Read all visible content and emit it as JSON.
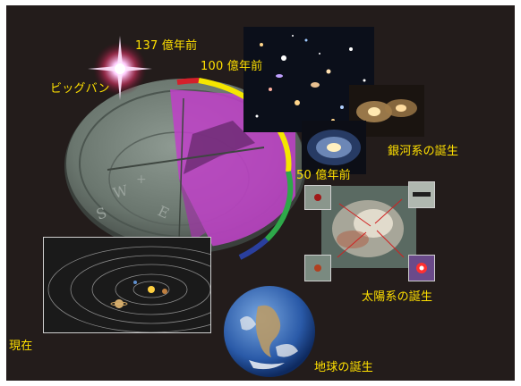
{
  "labels": {
    "big_bang": "ビッグバン",
    "age_137": "137 億年前",
    "age_100": "100 億年前",
    "age_50": "50 億年前",
    "galaxy_birth": "銀河系の誕生",
    "solar_system_birth": "太陽系の誕生",
    "earth_birth": "地球の誕生",
    "present": "現在"
  },
  "colors": {
    "background": "#231c1b",
    "label": "#ffe000",
    "timeline_red": "#d4202a",
    "timeline_yellow": "#f5e600",
    "timeline_green": "#2ea84a",
    "timeline_blue": "#2a3f9e",
    "sundial_shadow": "#c040c8"
  }
}
